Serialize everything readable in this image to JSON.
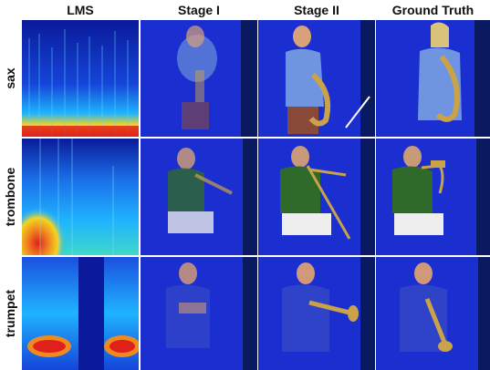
{
  "columns": [
    "LMS",
    "Stage I",
    "Stage II",
    "Ground Truth"
  ],
  "rows": [
    "sax",
    "trombone",
    "trumpet"
  ],
  "colors": {
    "spectrogram_low": "#0a1a9a",
    "spectrogram_mid": "#1fb3ff",
    "spectrogram_high": "#e0201a",
    "backdrop_blue": "#1b2fd0",
    "shirt_green": "#2f6a2a",
    "shirt_blue": "#2f43c8",
    "brass": "#c9a24a"
  },
  "cell_content": {
    "lms": "mel-spectrogram",
    "stage_1": "blurry generated frame",
    "stage_2": "sharper generated frame",
    "ground_truth": "real video frame"
  }
}
